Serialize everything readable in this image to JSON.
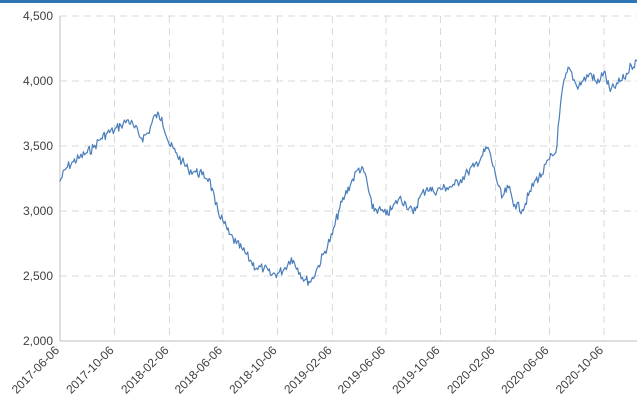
{
  "chart_data": {
    "type": "line",
    "title": "",
    "xlabel": "",
    "ylabel": "",
    "ylim": [
      2000,
      4500
    ],
    "yticks": [
      "2,000",
      "2,500",
      "3,000",
      "3,500",
      "4,000",
      "4,500"
    ],
    "xticks": [
      "2017-06-06",
      "2017-10-06",
      "2018-02-06",
      "2018-06-06",
      "2018-10-06",
      "2019-02-06",
      "2019-06-06",
      "2019-10-06",
      "2020-02-06",
      "2020-06-06",
      "2020-10-06"
    ],
    "grid": true,
    "legend": "none",
    "colors": {
      "line": "#4a7ebb",
      "grid": "#d9d9d9",
      "accent": "#2e75b6"
    },
    "series": [
      {
        "x": [
          "2017-06-06",
          "2017-06-20",
          "2017-07-06",
          "2017-07-20",
          "2017-08-06",
          "2017-08-20",
          "2017-09-06",
          "2017-09-20",
          "2017-10-06",
          "2017-10-20",
          "2017-11-06",
          "2017-11-20",
          "2017-12-06",
          "2017-12-20",
          "2018-01-06",
          "2018-01-20",
          "2018-02-06",
          "2018-02-20",
          "2018-03-06",
          "2018-03-20",
          "2018-04-06",
          "2018-04-20",
          "2018-05-06",
          "2018-05-20",
          "2018-06-06",
          "2018-06-20",
          "2018-07-06",
          "2018-07-20",
          "2018-08-06",
          "2018-08-20",
          "2018-09-06",
          "2018-09-20",
          "2018-10-06",
          "2018-10-20",
          "2018-11-06",
          "2018-11-20",
          "2018-12-06",
          "2018-12-20",
          "2019-01-06",
          "2019-01-20",
          "2019-02-06",
          "2019-02-20",
          "2019-03-06",
          "2019-03-20",
          "2019-04-06",
          "2019-04-20",
          "2019-05-06",
          "2019-05-20",
          "2019-06-06",
          "2019-06-20",
          "2019-07-06",
          "2019-07-20",
          "2019-08-06",
          "2019-08-20",
          "2019-09-06",
          "2019-09-20",
          "2019-10-06",
          "2019-10-20",
          "2019-11-06",
          "2019-11-20",
          "2019-12-06",
          "2019-12-20",
          "2020-01-06",
          "2020-01-20",
          "2020-02-06",
          "2020-02-20",
          "2020-03-06",
          "2020-03-20",
          "2020-04-06",
          "2020-04-20",
          "2020-05-06",
          "2020-05-20",
          "2020-06-06",
          "2020-06-20",
          "2020-07-06",
          "2020-07-20",
          "2020-08-06",
          "2020-08-20",
          "2020-09-06",
          "2020-09-20",
          "2020-10-06",
          "2020-10-20",
          "2020-11-06",
          "2020-11-20",
          "2020-12-06",
          "2020-12-20",
          "2020-12-31"
        ],
        "values": [
          3230,
          3330,
          3380,
          3410,
          3450,
          3490,
          3560,
          3600,
          3620,
          3660,
          3700,
          3640,
          3560,
          3600,
          3740,
          3720,
          3510,
          3450,
          3380,
          3320,
          3300,
          3280,
          3250,
          3050,
          2920,
          2820,
          2750,
          2700,
          2620,
          2560,
          2560,
          2510,
          2520,
          2550,
          2640,
          2560,
          2470,
          2460,
          2580,
          2690,
          2820,
          3000,
          3120,
          3220,
          3330,
          3290,
          3020,
          3010,
          2970,
          3020,
          3100,
          3060,
          2980,
          3100,
          3180,
          3150,
          3170,
          3180,
          3200,
          3240,
          3300,
          3340,
          3420,
          3490,
          3280,
          3100,
          3180,
          3050,
          3010,
          3120,
          3240,
          3280,
          3400,
          3450,
          3960,
          4100,
          3960,
          4000,
          4060,
          3980,
          4070,
          3920,
          3980,
          4020,
          4120,
          4150,
          4200
        ]
      }
    ]
  }
}
